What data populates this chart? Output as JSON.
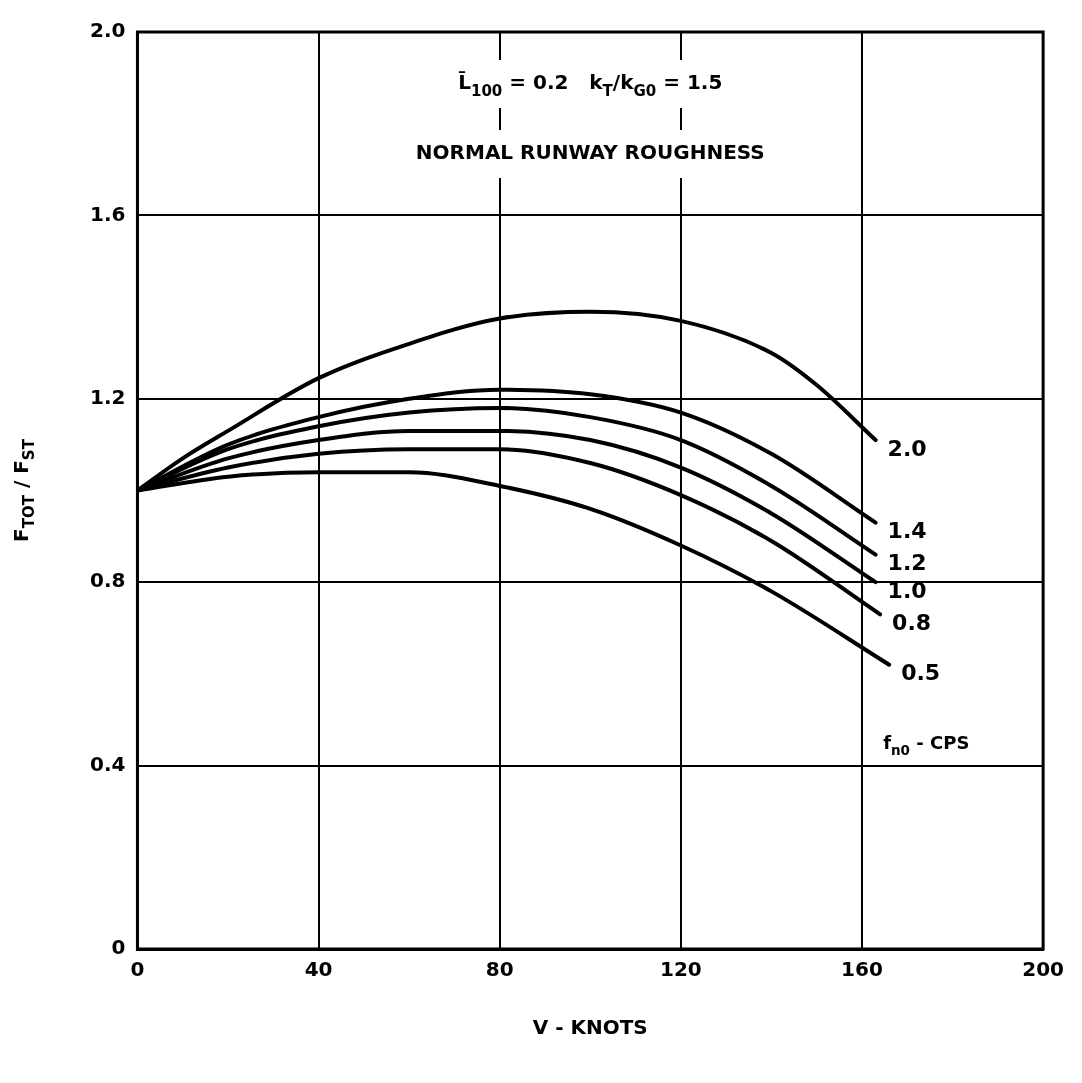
{
  "chart_data": {
    "type": "line",
    "xlabel": "V - KNOTS",
    "ylabel": "F$_{TOT}$ / F$_{ST}$",
    "legend_title": "f$_{n0}$ - CPS",
    "annotations": [
      "L̄$_{100}$ = 0.2   k$_{T}$/k$_{G0}$ = 1.5",
      "NORMAL RUNWAY ROUGHNESS"
    ],
    "xlim": [
      0,
      200
    ],
    "xticks": [
      0,
      40,
      80,
      120,
      160,
      200
    ],
    "ylim": [
      0,
      2
    ],
    "yticks": [
      0,
      0.4,
      0.8,
      1.2,
      1.6,
      {
        "value": 2,
        "label": "2.0"
      }
    ],
    "grid": true,
    "legend": false,
    "marker": "none",
    "line_style": "solid",
    "series": [
      {
        "name": "2.0",
        "color": "#000000",
        "x": [
          0,
          10,
          20,
          40,
          60,
          80,
          100,
          120,
          140,
          150,
          163
        ],
        "values": [
          1.0,
          1.07,
          1.13,
          1.245,
          1.32,
          1.375,
          1.39,
          1.37,
          1.3,
          1.23,
          1.11
        ]
      },
      {
        "name": "1.4",
        "color": "#000000",
        "x": [
          0,
          20,
          40,
          60,
          80,
          100,
          120,
          140,
          163
        ],
        "values": [
          1.0,
          1.1,
          1.16,
          1.2,
          1.22,
          1.21,
          1.17,
          1.08,
          0.93
        ]
      },
      {
        "name": "1.2",
        "color": "#000000",
        "x": [
          0,
          20,
          40,
          60,
          80,
          100,
          120,
          140,
          163
        ],
        "values": [
          1.0,
          1.09,
          1.14,
          1.17,
          1.18,
          1.16,
          1.11,
          1.01,
          0.86
        ]
      },
      {
        "name": "1.0",
        "color": "#000000",
        "x": [
          0,
          20,
          40,
          60,
          80,
          100,
          120,
          140,
          163
        ],
        "values": [
          1.0,
          1.07,
          1.11,
          1.13,
          1.13,
          1.11,
          1.05,
          0.95,
          0.8
        ]
      },
      {
        "name": "0.8",
        "color": "#000000",
        "x": [
          0,
          20,
          40,
          60,
          80,
          100,
          120,
          140,
          164
        ],
        "values": [
          1.0,
          1.05,
          1.08,
          1.09,
          1.09,
          1.06,
          0.99,
          0.89,
          0.73
        ]
      },
      {
        "name": "0.5",
        "color": "#000000",
        "x": [
          0,
          20,
          40,
          60,
          80,
          100,
          120,
          140,
          166
        ],
        "values": [
          1.0,
          1.03,
          1.04,
          1.04,
          1.01,
          0.96,
          0.88,
          0.78,
          0.62
        ]
      }
    ]
  }
}
